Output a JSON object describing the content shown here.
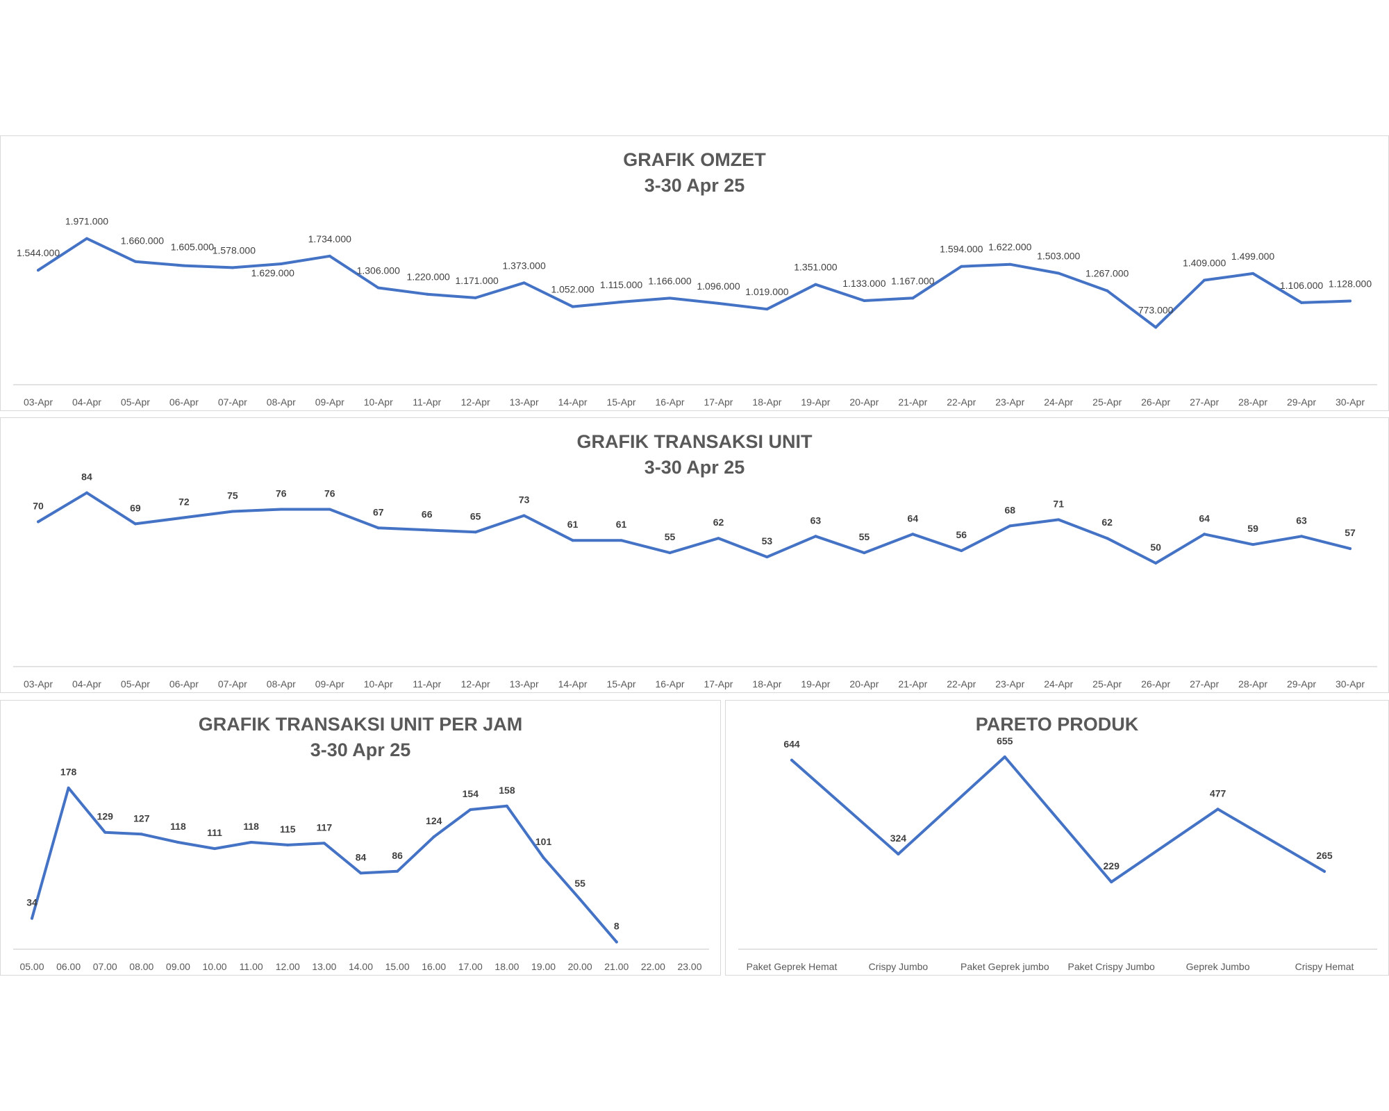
{
  "charts": {
    "omzet": {
      "title": "GRAFIK OMZET",
      "subtitle": "3-30 Apr 25"
    },
    "transaksi_unit": {
      "title": "GRAFIK TRANSAKSI UNIT",
      "subtitle": "3-30 Apr 25"
    },
    "per_jam": {
      "title": "GRAFIK TRANSAKSI UNIT PER JAM",
      "subtitle": "3-30 Apr 25"
    },
    "pareto": {
      "title": "PARETO PRODUK",
      "subtitle": ""
    }
  },
  "colors": {
    "line": "#4472c4",
    "axis": "#d9d9d9",
    "text": "#595959",
    "label_dark": "#404040"
  },
  "chart_data": [
    {
      "type": "line",
      "title": "GRAFIK OMZET",
      "subtitle": "3-30 Apr 25",
      "categories": [
        "03-Apr",
        "04-Apr",
        "05-Apr",
        "06-Apr",
        "07-Apr",
        "08-Apr",
        "09-Apr",
        "10-Apr",
        "11-Apr",
        "12-Apr",
        "13-Apr",
        "14-Apr",
        "15-Apr",
        "16-Apr",
        "17-Apr",
        "18-Apr",
        "19-Apr",
        "20-Apr",
        "21-Apr",
        "22-Apr",
        "23-Apr",
        "24-Apr",
        "25-Apr",
        "26-Apr",
        "27-Apr",
        "28-Apr",
        "29-Apr",
        "30-Apr"
      ],
      "values": [
        1544000,
        1971000,
        1660000,
        1605000,
        1578000,
        1629000,
        1734000,
        1306000,
        1220000,
        1171000,
        1373000,
        1052000,
        1115000,
        1166000,
        1096000,
        1019000,
        1351000,
        1133000,
        1167000,
        1594000,
        1622000,
        1503000,
        1267000,
        773000,
        1409000,
        1499000,
        1106000,
        1128000
      ],
      "value_labels": [
        "1.544.000",
        "1.971.000",
        "1.660.000",
        "1.605.000",
        "1.578.000",
        "1.629.000",
        "1.734.000",
        "1.306.000",
        "1.220.000",
        "1.171.000",
        "1.373.000",
        "1.052.000",
        "1.115.000",
        "1.166.000",
        "1.096.000",
        "1.019.000",
        "1.351.000",
        "1.133.000",
        "1.167.000",
        "1.594.000",
        "1.622.000",
        "1.503.000",
        "1.267.000",
        "773.000",
        "1.409.000",
        "1.499.000",
        "1.106.000",
        "1.128.000"
      ],
      "ylim": [
        0,
        2200000
      ],
      "grid": false,
      "legend": "none"
    },
    {
      "type": "line",
      "title": "GRAFIK TRANSAKSI UNIT",
      "subtitle": "3-30 Apr 25",
      "categories": [
        "03-Apr",
        "04-Apr",
        "05-Apr",
        "06-Apr",
        "07-Apr",
        "08-Apr",
        "09-Apr",
        "10-Apr",
        "11-Apr",
        "12-Apr",
        "13-Apr",
        "14-Apr",
        "15-Apr",
        "16-Apr",
        "17-Apr",
        "18-Apr",
        "19-Apr",
        "20-Apr",
        "21-Apr",
        "22-Apr",
        "23-Apr",
        "24-Apr",
        "25-Apr",
        "26-Apr",
        "27-Apr",
        "28-Apr",
        "29-Apr",
        "30-Apr"
      ],
      "values": [
        70,
        84,
        69,
        72,
        75,
        76,
        76,
        67,
        66,
        65,
        73,
        61,
        61,
        55,
        62,
        53,
        63,
        55,
        64,
        56,
        68,
        71,
        62,
        50,
        64,
        59,
        63,
        57
      ],
      "ylim": [
        0,
        100
      ],
      "grid": false,
      "legend": "none"
    },
    {
      "type": "line",
      "title": "GRAFIK TRANSAKSI UNIT PER JAM",
      "subtitle": "3-30 Apr 25",
      "categories": [
        "05.00",
        "06.00",
        "07.00",
        "08.00",
        "09.00",
        "10.00",
        "11.00",
        "12.00",
        "13.00",
        "14.00",
        "15.00",
        "16.00",
        "17.00",
        "18.00",
        "19.00",
        "20.00",
        "21.00",
        "22.00",
        "23.00"
      ],
      "values": [
        34,
        178,
        129,
        127,
        118,
        111,
        118,
        115,
        117,
        84,
        86,
        124,
        154,
        158,
        101,
        55,
        8,
        null,
        null
      ],
      "ylim": [
        0,
        200
      ],
      "grid": false,
      "legend": "none"
    },
    {
      "type": "line",
      "title": "PARETO PRODUK",
      "categories": [
        "Paket Geprek Hemat",
        "Crispy Jumbo",
        "Paket Geprek jumbo",
        "Paket Crispy Jumbo",
        "Geprek Jumbo",
        "Crispy Hemat"
      ],
      "values": [
        644,
        324,
        655,
        229,
        477,
        265
      ],
      "ylim": [
        0,
        700
      ],
      "grid": false,
      "legend": "none"
    }
  ]
}
